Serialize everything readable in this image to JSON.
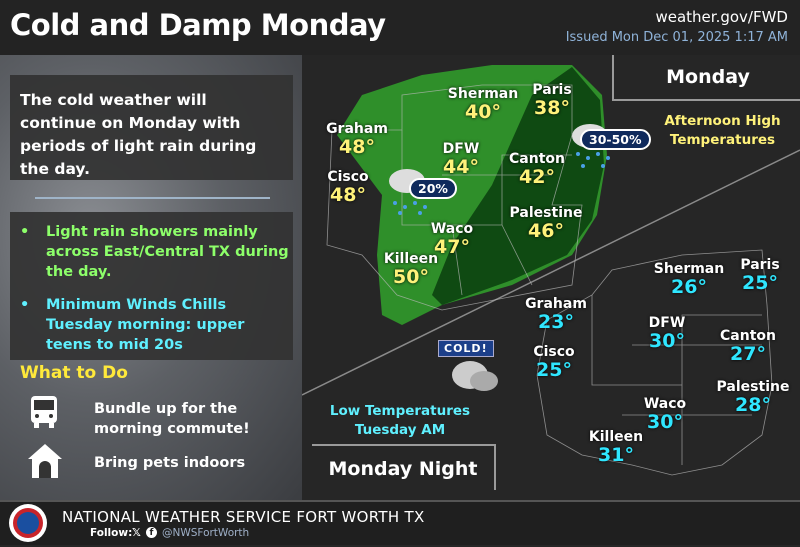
{
  "header": {
    "title": "Cold and Damp Monday",
    "site": "weather.gov/FWD",
    "issued": "Issued Mon Dec 01, 2025 1:17 AM"
  },
  "left_panel": {
    "summary": "The cold weather will continue on Monday with periods of light rain during the day.",
    "bullets": [
      "Light rain showers mainly across East/Central TX during the day.",
      "Minimum Winds Chills Tuesday morning: upper teens to mid 20s"
    ],
    "bullet_colors": [
      "#8dff6a",
      "#5ff0ff"
    ],
    "what_to_do_title": "What to Do",
    "actions": [
      {
        "icon": "bus-icon",
        "text": "Bundle up for the morning commute!"
      },
      {
        "icon": "dog-house-icon",
        "text": "Bring pets indoors"
      }
    ]
  },
  "monday_map": {
    "title": "Monday",
    "note": [
      "Afternoon High",
      "Temperatures"
    ],
    "rain_chances": [
      "20%",
      "30-50%"
    ],
    "cities": [
      {
        "name": "Sherman",
        "temp": "40°"
      },
      {
        "name": "Paris",
        "temp": "38°"
      },
      {
        "name": "Graham",
        "temp": "48°"
      },
      {
        "name": "DFW",
        "temp": "44°"
      },
      {
        "name": "Canton",
        "temp": "42°"
      },
      {
        "name": "Cisco",
        "temp": "48°"
      },
      {
        "name": "Palestine",
        "temp": "46°"
      },
      {
        "name": "Waco",
        "temp": "47°"
      },
      {
        "name": "Killeen",
        "temp": "50°"
      }
    ]
  },
  "night_map": {
    "title": "Monday Night",
    "note": [
      "Low Temperatures",
      "Tuesday AM"
    ],
    "badge": "COLD!",
    "cities": [
      {
        "name": "Sherman",
        "temp": "26°"
      },
      {
        "name": "Paris",
        "temp": "25°"
      },
      {
        "name": "Graham",
        "temp": "23°"
      },
      {
        "name": "DFW",
        "temp": "30°"
      },
      {
        "name": "Canton",
        "temp": "27°"
      },
      {
        "name": "Cisco",
        "temp": "25°"
      },
      {
        "name": "Palestine",
        "temp": "28°"
      },
      {
        "name": "Waco",
        "temp": "30°"
      },
      {
        "name": "Killeen",
        "temp": "31°"
      }
    ]
  },
  "footer": {
    "org": "NATIONAL WEATHER SERVICE FORT WORTH TX",
    "follow": "Follow:",
    "handle": "@NWSFortWorth"
  },
  "colors": {
    "high": "#fff27a",
    "low": "#2fe6ff",
    "rain_light": "#2f8f2a",
    "rain_dark": "#0f4a12",
    "what_to_do": "#ffe93b"
  }
}
